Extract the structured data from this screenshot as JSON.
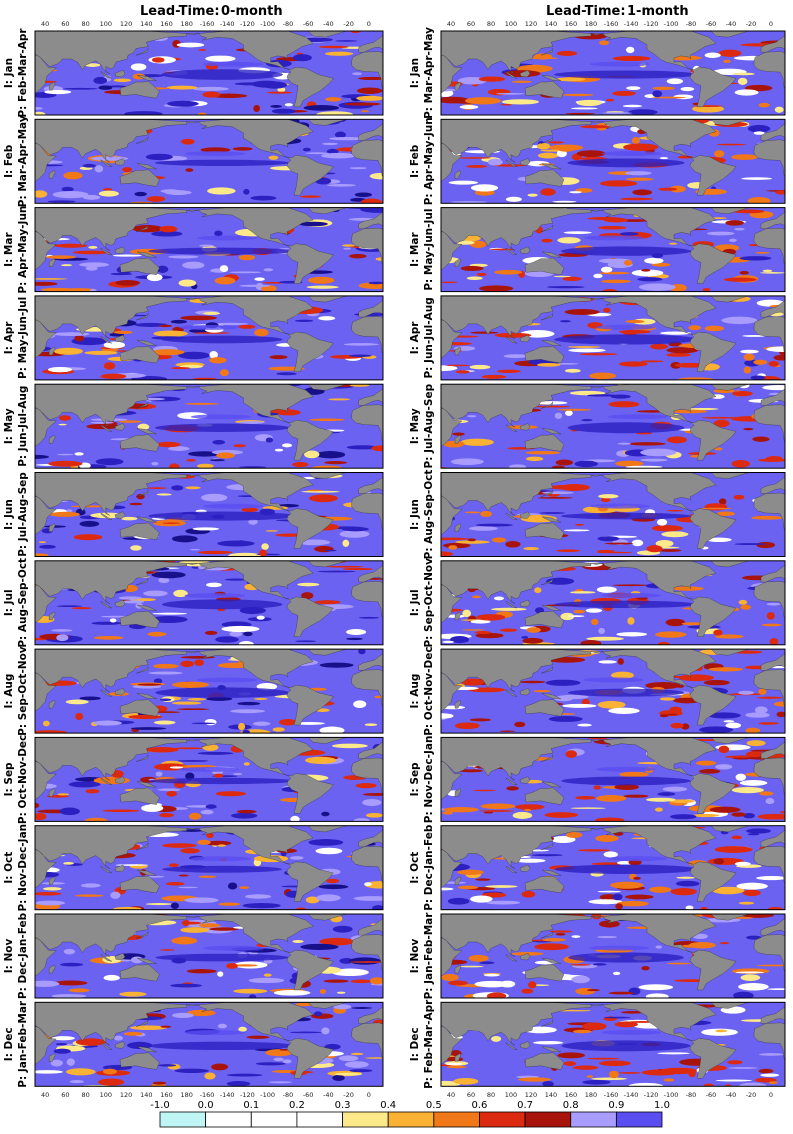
{
  "columns": [
    {
      "lead_label": "Lead-Time:",
      "lead": "0-month",
      "panels": [
        {
          "init": "I: Jan",
          "predict": "P: Feb-Mar-Apr"
        },
        {
          "init": "I: Feb",
          "predict": "P: Mar-Apr-May"
        },
        {
          "init": "I: Mar",
          "predict": "P: Apr-May-Jun"
        },
        {
          "init": "I: Apr",
          "predict": "P: May-Jun-Jul"
        },
        {
          "init": "I: May",
          "predict": "P: Jun-Jul-Aug"
        },
        {
          "init": "I: Jun",
          "predict": "P: Jul-Aug-Sep"
        },
        {
          "init": "I: Jul",
          "predict": "P: Aug-Sep-Oct"
        },
        {
          "init": "I: Aug",
          "predict": "P: Sep-Oct-Nov"
        },
        {
          "init": "I: Sep",
          "predict": "P: Oct-Nov-Dec"
        },
        {
          "init": "I: Oct",
          "predict": "P: Nov-Dec-Jan"
        },
        {
          "init": "I: Nov",
          "predict": "P: Dec-Jan-Feb"
        },
        {
          "init": "I: Dec",
          "predict": "P: Jan-Feb-Mar"
        }
      ]
    },
    {
      "lead_label": "Lead-Time:",
      "lead": "1-month",
      "panels": [
        {
          "init": "I: Jan",
          "predict": "P: Mar-Apr-May"
        },
        {
          "init": "I: Feb",
          "predict": "P: Apr-May-Jun"
        },
        {
          "init": "I: Mar",
          "predict": "P: May-Jun-Jul"
        },
        {
          "init": "I: Apr",
          "predict": "P: Jun-Jul-Aug"
        },
        {
          "init": "I: May",
          "predict": "P: Jul-Aug-Sep"
        },
        {
          "init": "I: Jun",
          "predict": "P: Aug-Sep-Oct"
        },
        {
          "init": "I: Jul",
          "predict": "P: Sep-Oct-Nov"
        },
        {
          "init": "I: Aug",
          "predict": "P: Oct-Nov-Dec"
        },
        {
          "init": "I: Sep",
          "predict": "P: Nov-Dec-Jan"
        },
        {
          "init": "I: Oct",
          "predict": "P: Dec-Jan-Feb"
        },
        {
          "init": "I: Nov",
          "predict": "P: Jan-Feb-Mar"
        },
        {
          "init": "I: Dec",
          "predict": "P: Feb-Mar-Apr"
        }
      ]
    }
  ],
  "lon_labels": [
    "40",
    "60",
    "80",
    "100",
    "120",
    "140",
    "160",
    "180",
    "-160",
    "-140",
    "-120",
    "-100",
    "-80",
    "-60",
    "-40",
    "-20",
    "0"
  ],
  "colorbar": {
    "labels": [
      "-1.0",
      "0.0",
      "0.1",
      "0.2",
      "0.3",
      "0.4",
      "0.5",
      "0.6",
      "0.7",
      "0.8",
      "0.9",
      "1.0"
    ],
    "colors": [
      "#bff5f5",
      "#ffffff",
      "#ffffff",
      "#ffffff",
      "#fce98a",
      "#f9b233",
      "#f07818",
      "#dc2a10",
      "#a8140c",
      "#a89cff",
      "#5a4ef0",
      "#2c20c0",
      "#18108a"
    ]
  }
}
